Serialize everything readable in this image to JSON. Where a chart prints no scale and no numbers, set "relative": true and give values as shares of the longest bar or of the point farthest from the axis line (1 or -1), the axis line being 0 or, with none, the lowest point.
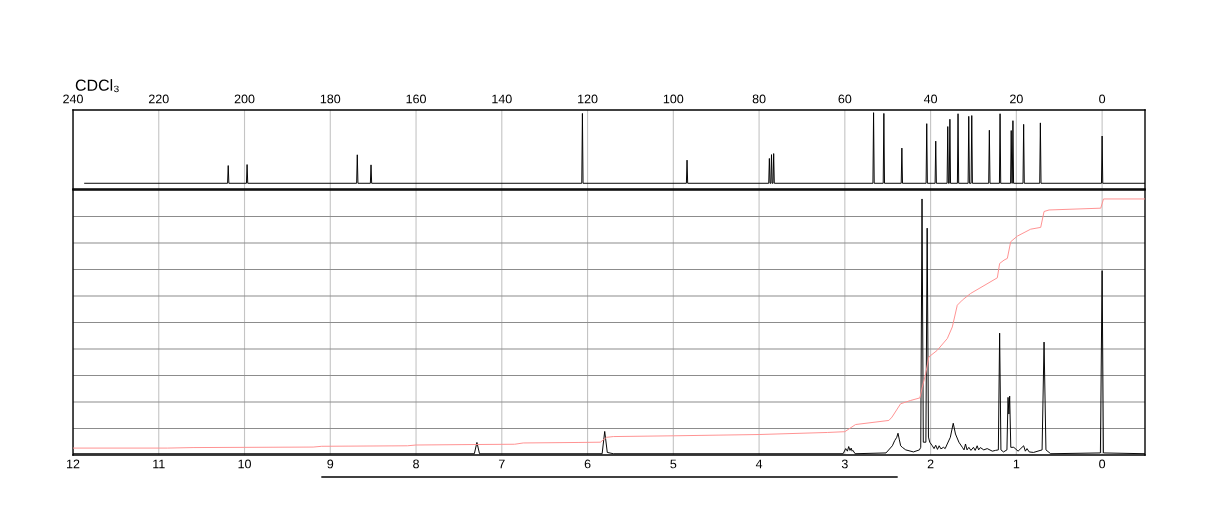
{
  "chart_data": [
    {
      "type": "line",
      "relative": true,
      "xlim": [
        240,
        -10
      ],
      "xticks": [
        240,
        220,
        200,
        180,
        160,
        140,
        120,
        100,
        80,
        60,
        40,
        20,
        0
      ],
      "grid": "x",
      "annotations": [
        "CDCl₃"
      ],
      "series": [
        {
          "color": "#000000",
          "x": [
            237.3,
            203.95,
            203.8,
            203.65,
            199.55,
            199.4,
            199.25,
            173.85,
            173.7,
            173.55,
            170.65,
            170.5,
            170.35,
            121.35,
            121.2,
            121.05,
            96.95,
            96.8,
            96.65,
            77.75,
            77.6,
            77.45,
            77.25,
            77.1,
            76.95,
            76.75,
            76.6,
            76.45,
            53.45,
            53.3,
            53.15,
            51.05,
            50.9,
            50.75,
            46.85,
            46.7,
            46.55,
            41.05,
            40.9,
            40.75,
            38.95,
            38.8,
            38.65,
            36.15,
            36.0,
            35.85,
            35.65,
            35.5,
            35.35,
            33.75,
            33.6,
            33.45,
            31.25,
            31.1,
            30.95,
            30.55,
            30.4,
            30.25,
            26.45,
            26.3,
            26.15,
            23.95,
            23.8,
            23.65,
            21.35,
            21.2,
            21.05,
            20.95,
            20.8,
            20.65,
            18.45,
            18.3,
            18.15,
            14.55,
            14.4,
            14.25,
            0.15,
            0.0,
            -0.15,
            -10
          ],
          "values": [
            0.075,
            0.075,
            0.307,
            0.075,
            0.075,
            0.32,
            0.075,
            0.075,
            0.448,
            0.075,
            0.075,
            0.316,
            0.075,
            0.075,
            0.99,
            0.075,
            0.075,
            0.378,
            0.075,
            0.075,
            0.4,
            0.075,
            0.075,
            0.45,
            0.075,
            0.075,
            0.464,
            0.075,
            0.075,
            1.0,
            0.075,
            0.075,
            0.99,
            0.075,
            0.075,
            0.536,
            0.075,
            0.075,
            0.856,
            0.075,
            0.075,
            0.627,
            0.075,
            0.075,
            0.818,
            0.075,
            0.075,
            0.914,
            0.075,
            0.075,
            0.986,
            0.075,
            0.075,
            0.952,
            0.075,
            0.075,
            0.962,
            0.075,
            0.075,
            0.77,
            0.075,
            0.075,
            0.986,
            0.075,
            0.075,
            0.766,
            0.075,
            0.075,
            0.895,
            0.075,
            0.075,
            0.847,
            0.075,
            0.075,
            0.866,
            0.075,
            0.075,
            0.694,
            0.075,
            0.075
          ]
        }
      ]
    },
    {
      "type": "line",
      "relative": true,
      "xlim": [
        12,
        -0.5
      ],
      "xticks": [
        12,
        11,
        10,
        9,
        8,
        7,
        6,
        5,
        4,
        3,
        2,
        1,
        0
      ],
      "grid": true,
      "series": [
        {
          "color": "#000000",
          "x": [
            12.0,
            7.32,
            7.29,
            7.26,
            5.83,
            5.8,
            5.77,
            5.7,
            3.02,
            2.99,
            2.97,
            2.955,
            2.94,
            2.926,
            2.915,
            2.906,
            2.88,
            2.52,
            2.446,
            2.419,
            2.395,
            2.38,
            2.364,
            2.349,
            2.33,
            2.29,
            2.2,
            2.13,
            2.115,
            2.1,
            2.085,
            2.055,
            2.04,
            2.025,
            2.01,
            1.98,
            1.96,
            1.94,
            1.92,
            1.9,
            1.88,
            1.85,
            1.83,
            1.806,
            1.77,
            1.736,
            1.71,
            1.67,
            1.63,
            1.61,
            1.593,
            1.575,
            1.554,
            1.53,
            1.5,
            1.48,
            1.457,
            1.44,
            1.42,
            1.38,
            1.34,
            1.28,
            1.244,
            1.21,
            1.195,
            1.18,
            1.15,
            1.11,
            1.097,
            1.087,
            1.078,
            1.065,
            1.03,
            0.98,
            0.915,
            0.895,
            0.876,
            0.85,
            0.8,
            0.7,
            0.677,
            0.655,
            0.6,
            0.02,
            0.0,
            -0.015,
            -0.5
          ],
          "values": [
            0.005,
            0.005,
            0.049,
            0.005,
            0.005,
            0.092,
            0.01,
            0.005,
            0.005,
            0.025,
            0.015,
            0.033,
            0.018,
            0.027,
            0.015,
            0.018,
            0.005,
            0.008,
            0.036,
            0.056,
            0.069,
            0.085,
            0.059,
            0.036,
            0.03,
            0.02,
            0.012,
            0.02,
            0.03,
            1.0,
            0.05,
            0.05,
            0.886,
            0.07,
            0.05,
            0.036,
            0.025,
            0.038,
            0.022,
            0.036,
            0.024,
            0.03,
            0.025,
            0.043,
            0.069,
            0.124,
            0.082,
            0.05,
            0.03,
            0.02,
            0.043,
            0.02,
            0.03,
            0.018,
            0.03,
            0.018,
            0.036,
            0.02,
            0.029,
            0.02,
            0.025,
            0.015,
            0.018,
            0.02,
            0.476,
            0.02,
            0.012,
            0.02,
            0.225,
            0.16,
            0.23,
            0.03,
            0.03,
            0.015,
            0.036,
            0.015,
            0.025,
            0.012,
            0.01,
            0.02,
            0.441,
            0.02,
            0.005,
            0.008,
            0.72,
            0.008,
            0.005
          ]
        },
        {
          "color": "#ff9090",
          "x": [
            12.0,
            10.9,
            10.6,
            9.2,
            9.1,
            8.1,
            8.0,
            7.3,
            6.85,
            6.75,
            6.1,
            5.85,
            5.78,
            5.7,
            5.0,
            4.0,
            3.2,
            3.0,
            2.875,
            2.486,
            2.45,
            2.35,
            2.233,
            2.125,
            2.097,
            2.058,
            2.02,
            1.922,
            1.805,
            1.747,
            1.689,
            1.63,
            1.533,
            1.222,
            1.195,
            1.144,
            1.105,
            1.066,
            0.988,
            0.833,
            0.716,
            0.677,
            0.619,
            0.016,
            -0.016,
            -0.5
          ],
          "values": [
            0.027,
            0.027,
            0.029,
            0.031,
            0.034,
            0.036,
            0.039,
            0.041,
            0.042,
            0.047,
            0.049,
            0.05,
            0.069,
            0.072,
            0.075,
            0.08,
            0.088,
            0.091,
            0.119,
            0.135,
            0.148,
            0.2,
            0.213,
            0.223,
            0.265,
            0.317,
            0.383,
            0.409,
            0.455,
            0.5,
            0.585,
            0.605,
            0.631,
            0.692,
            0.748,
            0.761,
            0.768,
            0.833,
            0.855,
            0.882,
            0.889,
            0.951,
            0.957,
            0.964,
            1.0,
            1.0
          ]
        }
      ]
    }
  ]
}
